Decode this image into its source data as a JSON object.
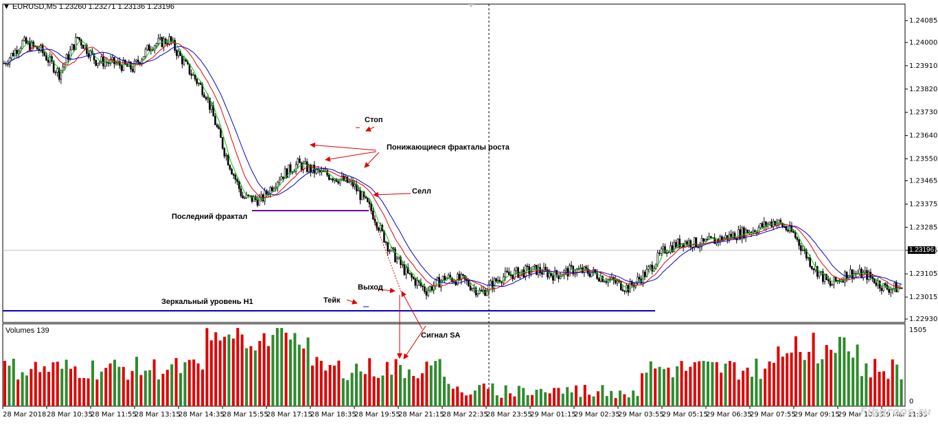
{
  "header": {
    "symbol": "EURUSD,M5",
    "ohlc": "1.23260 1.23271 1.23136 1.23196"
  },
  "volumes_label": "Volumes 139",
  "price_axis": [
    "1.24085",
    "1.24000",
    "1.23910",
    "1.23820",
    "1.23730",
    "1.23640",
    "1.23550",
    "1.23465",
    "1.23375",
    "1.23285",
    "1.23196",
    "1.23105",
    "1.23015",
    "1.22930"
  ],
  "current_price": "1.23196",
  "volume_axis": [
    "1505",
    "0"
  ],
  "time_axis": [
    "28 Mar 2018",
    "28 Mar 10:35",
    "28 Mar 11:55",
    "28 Mar 13:15",
    "28 Mar 14:35",
    "28 Mar 15:55",
    "28 Mar 17:15",
    "28 Mar 18:35",
    "28 Mar 19:55",
    "28 Mar 21:15",
    "28 Mar 22:35",
    "28 Mar 23:55",
    "29 Mar 01:15",
    "29 Mar 02:35",
    "29 Mar 03:55",
    "29 Mar 05:15",
    "29 Mar 06:35",
    "29 Mar 07:55",
    "29 Mar 09:15",
    "29 Mar 10:35",
    "29 Mar 11:55"
  ],
  "annotations": {
    "stop": "Стоп",
    "fractals": "Понижающиеся фракталы роста",
    "sell": "Селл",
    "last_fractal": "Последний фрактал",
    "exit": "Выход",
    "take": "Тейк",
    "mirror_level": "Зеркальный уровень H1",
    "signal": "Сигнал SA"
  },
  "watermark": "Fibgroos.ru",
  "colors": {
    "bull": "#2e8b2e",
    "bear": "#e00000",
    "ma_fast": "#00cc00",
    "ma_mid": "#e00000",
    "ma_slow": "#0000cc",
    "mirror_level": "#0000c8",
    "fractal_line": "#6a00a0",
    "arrow": "#e00000"
  },
  "chart_data": {
    "type": "candlestick",
    "symbol": "EURUSD",
    "timeframe": "M5",
    "ylim": [
      1.229,
      1.2414
    ],
    "price_ticks": [
      1.24085,
      1.24,
      1.2391,
      1.2382,
      1.2373,
      1.2364,
      1.2355,
      1.23465,
      1.23375,
      1.23285,
      1.23196,
      1.23105,
      1.23015,
      1.2293
    ],
    "mirror_level_price": 1.2297,
    "last_fractal_price": 1.2335,
    "close_path": [
      [
        0,
        1.2392
      ],
      [
        10,
        1.24
      ],
      [
        20,
        1.2397
      ],
      [
        30,
        1.2388
      ],
      [
        40,
        1.2402
      ],
      [
        50,
        1.2393
      ],
      [
        60,
        1.2392
      ],
      [
        70,
        1.239
      ],
      [
        80,
        1.2399
      ],
      [
        90,
        1.2401
      ],
      [
        100,
        1.239
      ],
      [
        110,
        1.238
      ],
      [
        120,
        1.2358
      ],
      [
        130,
        1.234
      ],
      [
        140,
        1.2339
      ],
      [
        150,
        1.2348
      ],
      [
        160,
        1.2353
      ],
      [
        170,
        1.235
      ],
      [
        180,
        1.2348
      ],
      [
        190,
        1.2345
      ],
      [
        200,
        1.2335
      ],
      [
        210,
        1.232
      ],
      [
        220,
        1.231
      ],
      [
        230,
        1.2304
      ],
      [
        240,
        1.2309
      ],
      [
        250,
        1.2308
      ],
      [
        260,
        1.2303
      ],
      [
        270,
        1.2309
      ],
      [
        280,
        1.2311
      ],
      [
        290,
        1.2312
      ],
      [
        300,
        1.231
      ],
      [
        310,
        1.2312
      ],
      [
        320,
        1.2311
      ],
      [
        330,
        1.2308
      ],
      [
        340,
        1.2305
      ],
      [
        350,
        1.2311
      ],
      [
        360,
        1.232
      ],
      [
        370,
        1.2323
      ],
      [
        380,
        1.2322
      ],
      [
        390,
        1.2324
      ],
      [
        400,
        1.2326
      ],
      [
        410,
        1.2328
      ],
      [
        420,
        1.2331
      ],
      [
        430,
        1.2326
      ],
      [
        440,
        1.2314
      ],
      [
        450,
        1.2306
      ],
      [
        460,
        1.2311
      ],
      [
        470,
        1.231
      ],
      [
        480,
        1.2305
      ]
    ],
    "volume_ylim": [
      0,
      1505
    ]
  }
}
